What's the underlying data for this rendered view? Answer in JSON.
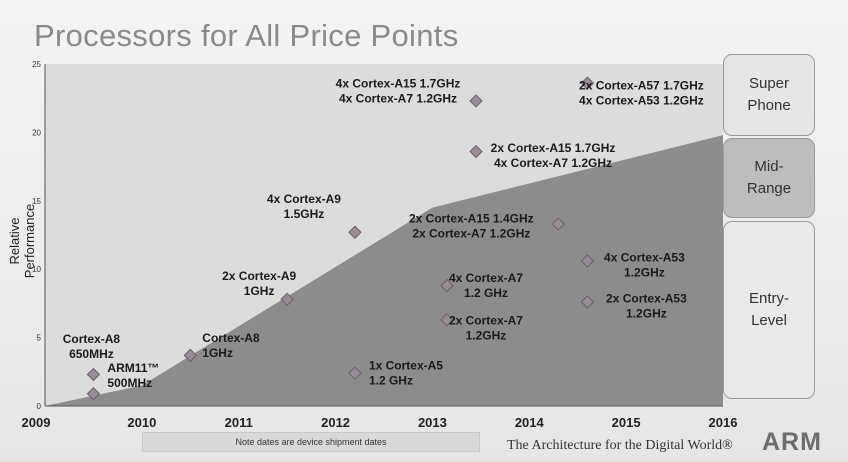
{
  "title": "Processors for All Price Points",
  "note": "Note dates are device shipment dates",
  "tagline": "The Architecture for the Digital World®",
  "logo": "ARM",
  "tiers": [
    "Super Phone",
    "Mid-Range",
    "Entry-Level"
  ],
  "colors": {
    "area": "#8c8c8c",
    "marker": "#9a8c96",
    "marker_stroke": "#6a5e68",
    "tier_mid": "#bdbdbd"
  },
  "chart_data": {
    "type": "scatter",
    "title": "Processors for All Price Points",
    "xlabel": "",
    "ylabel": "Relative Performance",
    "xlim": [
      2009,
      2016
    ],
    "ylim": [
      0,
      25
    ],
    "x_ticks": [
      "2009",
      "2010",
      "2011",
      "2012",
      "2013",
      "2014",
      "2015",
      "2016"
    ],
    "y_ticks": [
      "0",
      "5",
      "10",
      "15",
      "20",
      "25"
    ],
    "grid": false,
    "area": [
      [
        2009,
        0
      ],
      [
        2010,
        1.5
      ],
      [
        2013,
        14.5
      ],
      [
        2016,
        19.8
      ],
      [
        2016,
        0
      ]
    ],
    "points": [
      {
        "label": [
          "Cortex-A8",
          "650MHz"
        ],
        "x": 2009.5,
        "y": 2.3
      },
      {
        "label": [
          "ARM11™",
          "500MHz"
        ],
        "x": 2009.5,
        "y": 0.9
      },
      {
        "label": [
          "Cortex-A8",
          "1GHz"
        ],
        "x": 2010.5,
        "y": 3.7
      },
      {
        "label": [
          "2x Cortex-A9",
          "1GHz"
        ],
        "x": 2011.5,
        "y": 7.8
      },
      {
        "label": [
          "4x Cortex-A9",
          "1.5GHz"
        ],
        "x": 2012.2,
        "y": 12.7
      },
      {
        "label": [
          "1x Cortex-A5",
          "1.2 GHz"
        ],
        "x": 2012.2,
        "y": 2.4
      },
      {
        "label": [
          "4x Cortex-A15 1.7GHz",
          "4x Cortex-A7 1.2GHz"
        ],
        "x": 2013.45,
        "y": 22.3
      },
      {
        "label": [
          "2x Cortex-A15 1.7GHz",
          "4x Cortex-A7 1.2GHz"
        ],
        "x": 2013.45,
        "y": 18.6
      },
      {
        "label": [
          "2x Cortex-A15 1.4GHz",
          "2x Cortex-A7 1.2GHz"
        ],
        "x": 2014.3,
        "y": 13.3
      },
      {
        "label": [
          "4x Cortex-A7",
          "1.2 GHz"
        ],
        "x": 2013.15,
        "y": 8.8
      },
      {
        "label": [
          "2x Cortex-A7",
          "1.2GHz"
        ],
        "x": 2013.15,
        "y": 6.3
      },
      {
        "label": [
          "2x Cortex-A57 1.7GHz",
          "4x Cortex-A53 1.2GHz"
        ],
        "x": 2014.6,
        "y": 23.6
      },
      {
        "label": [
          "4x Cortex-A53",
          "1.2GHz"
        ],
        "x": 2014.6,
        "y": 10.6
      },
      {
        "label": [
          "2x Cortex-A53",
          "1.2GHz"
        ],
        "x": 2014.6,
        "y": 7.6
      }
    ]
  }
}
